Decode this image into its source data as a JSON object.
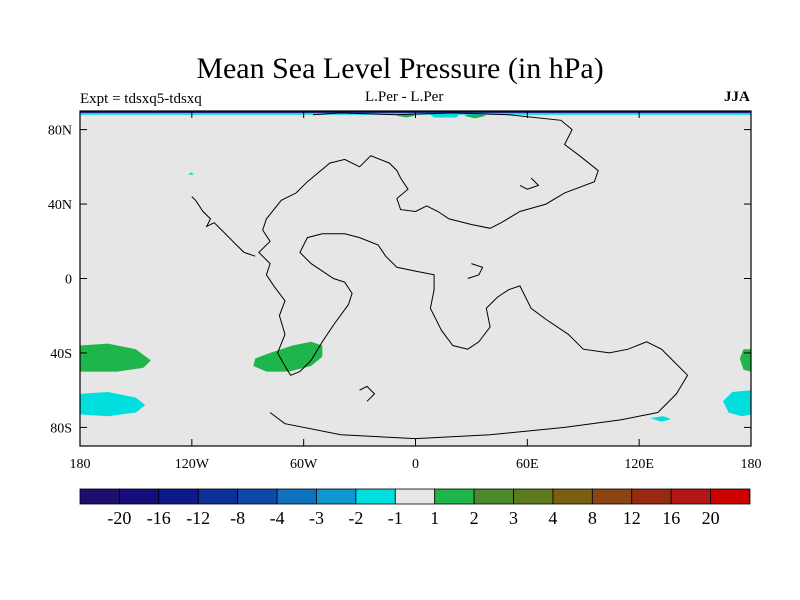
{
  "chart_data": {
    "type": "heatmap",
    "title": "Mean Sea Level Pressure (in hPa)",
    "subtitle_left": "Expt = tdsxq5-tdsxq",
    "subtitle_center": "L.Per - L.Per",
    "subtitle_right": "JJA",
    "x_range": [
      -180,
      180
    ],
    "y_range": [
      -90,
      90
    ],
    "x_ticks": [
      {
        "value": -180,
        "label": "180"
      },
      {
        "value": -120,
        "label": "120W"
      },
      {
        "value": -60,
        "label": "60W"
      },
      {
        "value": 0,
        "label": "0"
      },
      {
        "value": 60,
        "label": "60E"
      },
      {
        "value": 120,
        "label": "120E"
      },
      {
        "value": 180,
        "label": "180"
      }
    ],
    "y_ticks": [
      {
        "value": 80,
        "label": "80N"
      },
      {
        "value": 40,
        "label": "40N"
      },
      {
        "value": 0,
        "label": "0"
      },
      {
        "value": -40,
        "label": "40S"
      },
      {
        "value": -80,
        "label": "80S"
      }
    ],
    "background_color": "#e6e6e6",
    "colorbar": {
      "colors": [
        "#1e0f6e",
        "#150d7c",
        "#0e1a8c",
        "#0c2f9a",
        "#0d4aa8",
        "#0e72c0",
        "#0e98cf",
        "#00dede",
        "#e6e6e6",
        "#1eb54a",
        "#4a8a2a",
        "#5e7a1e",
        "#7a5e12",
        "#8a4512",
        "#992a12",
        "#b31616",
        "#cc0000"
      ],
      "labels": [
        "-20",
        "-16",
        "-12",
        "-8",
        "-4",
        "-3",
        "-2",
        "-1",
        "1",
        "2",
        "3",
        "4",
        "8",
        "12",
        "16",
        "20"
      ]
    },
    "anomaly_regions": [
      {
        "level": "2",
        "color": "#1eb54a",
        "polygon": [
          [
            -180,
            -36
          ],
          [
            -165,
            -35
          ],
          [
            -150,
            -38
          ],
          [
            -142,
            -44
          ],
          [
            -146,
            -48
          ],
          [
            -160,
            -50
          ],
          [
            -180,
            -50
          ]
        ]
      },
      {
        "level": "2",
        "color": "#1eb54a",
        "polygon": [
          [
            -86,
            -43
          ],
          [
            -78,
            -40
          ],
          [
            -66,
            -36
          ],
          [
            -56,
            -34
          ],
          [
            -50,
            -36
          ],
          [
            -50,
            -42
          ],
          [
            -56,
            -47
          ],
          [
            -68,
            -50
          ],
          [
            -80,
            -50
          ],
          [
            -87,
            -47
          ]
        ]
      },
      {
        "level": "2",
        "color": "#1eb54a",
        "polygon": [
          [
            180,
            -38
          ],
          [
            176,
            -38
          ],
          [
            174,
            -43
          ],
          [
            176,
            -49
          ],
          [
            180,
            -50
          ]
        ]
      },
      {
        "level": "2",
        "color": "#1eb54a",
        "polygon": [
          [
            -10,
            87.5
          ],
          [
            -5,
            89
          ],
          [
            0,
            87.5
          ],
          [
            -5,
            86.5
          ]
        ]
      },
      {
        "level": "2",
        "color": "#1eb54a",
        "polygon": [
          [
            26,
            87.5
          ],
          [
            32,
            89
          ],
          [
            38,
            87.5
          ],
          [
            32,
            86
          ]
        ]
      },
      {
        "level": "-1",
        "color": "#00dede",
        "polygon": [
          [
            -180,
            -62
          ],
          [
            -165,
            -61
          ],
          [
            -150,
            -64
          ],
          [
            -145,
            -68
          ],
          [
            -150,
            -72
          ],
          [
            -165,
            -74
          ],
          [
            -180,
            -73
          ]
        ]
      },
      {
        "level": "-1",
        "color": "#00dede",
        "polygon": [
          [
            180,
            -60
          ],
          [
            170,
            -61
          ],
          [
            165,
            -66
          ],
          [
            168,
            -72
          ],
          [
            175,
            -74
          ],
          [
            180,
            -73
          ]
        ]
      },
      {
        "level": "-1",
        "color": "#00dede",
        "polygon": [
          [
            126,
            -75
          ],
          [
            133,
            -74
          ],
          [
            137,
            -75.5
          ],
          [
            132,
            -77
          ]
        ]
      },
      {
        "level": "-1",
        "color": "#00dede",
        "polygon": [
          [
            -122,
            56
          ],
          [
            -120,
            57
          ],
          [
            -119,
            55.5
          ]
        ]
      },
      {
        "level": "-1",
        "color": "#00dede",
        "polygon": [
          [
            -180,
            90
          ],
          [
            180,
            90
          ],
          [
            180,
            88
          ],
          [
            -180,
            88
          ]
        ]
      },
      {
        "level": "-1",
        "color": "#00dede",
        "polygon": [
          [
            5,
            90
          ],
          [
            25,
            90
          ],
          [
            22,
            86.5
          ],
          [
            10,
            86.5
          ]
        ]
      },
      {
        "level": "-20",
        "color": "#1e0f6e",
        "polygon": [
          [
            -180,
            90
          ],
          [
            180,
            90
          ],
          [
            180,
            89
          ],
          [
            -180,
            89
          ]
        ]
      }
    ],
    "coastlines": [
      [
        [
          -55,
          88
        ],
        [
          -40,
          89
        ],
        [
          -10,
          88
        ],
        [
          20,
          89
        ],
        [
          50,
          88
        ],
        [
          78,
          85
        ],
        [
          84,
          80
        ],
        [
          80,
          72
        ],
        [
          88,
          66
        ],
        [
          98,
          58
        ],
        [
          96,
          52
        ],
        [
          80,
          46
        ],
        [
          70,
          40
        ],
        [
          56,
          36
        ],
        [
          46,
          30
        ],
        [
          40,
          27
        ],
        [
          30,
          29
        ],
        [
          18,
          32
        ],
        [
          12,
          36
        ],
        [
          6,
          39
        ],
        [
          0,
          36
        ],
        [
          -8,
          37
        ],
        [
          -10,
          43
        ],
        [
          -4,
          48
        ],
        [
          -8,
          54
        ],
        [
          -10,
          58
        ],
        [
          -14,
          62
        ],
        [
          -24,
          66
        ],
        [
          -30,
          60
        ],
        [
          -38,
          64
        ],
        [
          -46,
          62
        ],
        [
          -58,
          52
        ],
        [
          -64,
          46
        ],
        [
          -72,
          42
        ],
        [
          -80,
          32
        ],
        [
          -82,
          26
        ],
        [
          -78,
          20
        ],
        [
          -84,
          14
        ],
        [
          -78,
          8
        ],
        [
          -80,
          2
        ],
        [
          -76,
          -4
        ],
        [
          -70,
          -12
        ],
        [
          -73,
          -20
        ],
        [
          -70,
          -30
        ],
        [
          -74,
          -40
        ],
        [
          -70,
          -47
        ],
        [
          -67,
          -52
        ],
        [
          -62,
          -50
        ],
        [
          -56,
          -44
        ],
        [
          -50,
          -34
        ],
        [
          -44,
          -25
        ],
        [
          -36,
          -14
        ],
        [
          -34,
          -8
        ],
        [
          -38,
          -2
        ],
        [
          -44,
          0
        ],
        [
          -50,
          4
        ],
        [
          -56,
          8
        ],
        [
          -62,
          14
        ],
        [
          -58,
          22
        ],
        [
          -50,
          24
        ],
        [
          -38,
          24
        ],
        [
          -30,
          22
        ],
        [
          -20,
          18
        ],
        [
          -16,
          12
        ],
        [
          -10,
          6
        ],
        [
          0,
          4
        ],
        [
          10,
          2
        ],
        [
          10,
          -6
        ],
        [
          8,
          -16
        ],
        [
          14,
          -28
        ],
        [
          20,
          -36
        ],
        [
          28,
          -38
        ],
        [
          34,
          -34
        ],
        [
          40,
          -26
        ],
        [
          38,
          -16
        ],
        [
          44,
          -10
        ],
        [
          50,
          -6
        ],
        [
          56,
          -4
        ],
        [
          62,
          -16
        ],
        [
          70,
          -22
        ],
        [
          82,
          -30
        ],
        [
          90,
          -38
        ],
        [
          104,
          -40
        ],
        [
          114,
          -38
        ],
        [
          124,
          -34
        ],
        [
          132,
          -38
        ],
        [
          138,
          -44
        ],
        [
          146,
          -52
        ],
        [
          140,
          -62
        ],
        [
          130,
          -72
        ],
        [
          110,
          -76
        ],
        [
          80,
          -80
        ],
        [
          40,
          -84
        ],
        [
          0,
          -86
        ],
        [
          -40,
          -84
        ],
        [
          -70,
          -78
        ],
        [
          -78,
          -72
        ]
      ],
      [
        [
          -120,
          44
        ],
        [
          -118,
          42
        ],
        [
          -114,
          36
        ],
        [
          -110,
          32
        ],
        [
          -112,
          28
        ],
        [
          -108,
          30
        ],
        [
          -104,
          26
        ],
        [
          -98,
          20
        ],
        [
          -92,
          14
        ],
        [
          -86,
          12
        ]
      ],
      [
        [
          30,
          8
        ],
        [
          36,
          6
        ],
        [
          34,
          2
        ],
        [
          28,
          0
        ]
      ],
      [
        [
          -30,
          -60
        ],
        [
          -26,
          -58
        ],
        [
          -22,
          -62
        ],
        [
          -26,
          -66
        ]
      ],
      [
        [
          56,
          50
        ],
        [
          60,
          48
        ],
        [
          66,
          50
        ],
        [
          62,
          54
        ]
      ]
    ]
  }
}
